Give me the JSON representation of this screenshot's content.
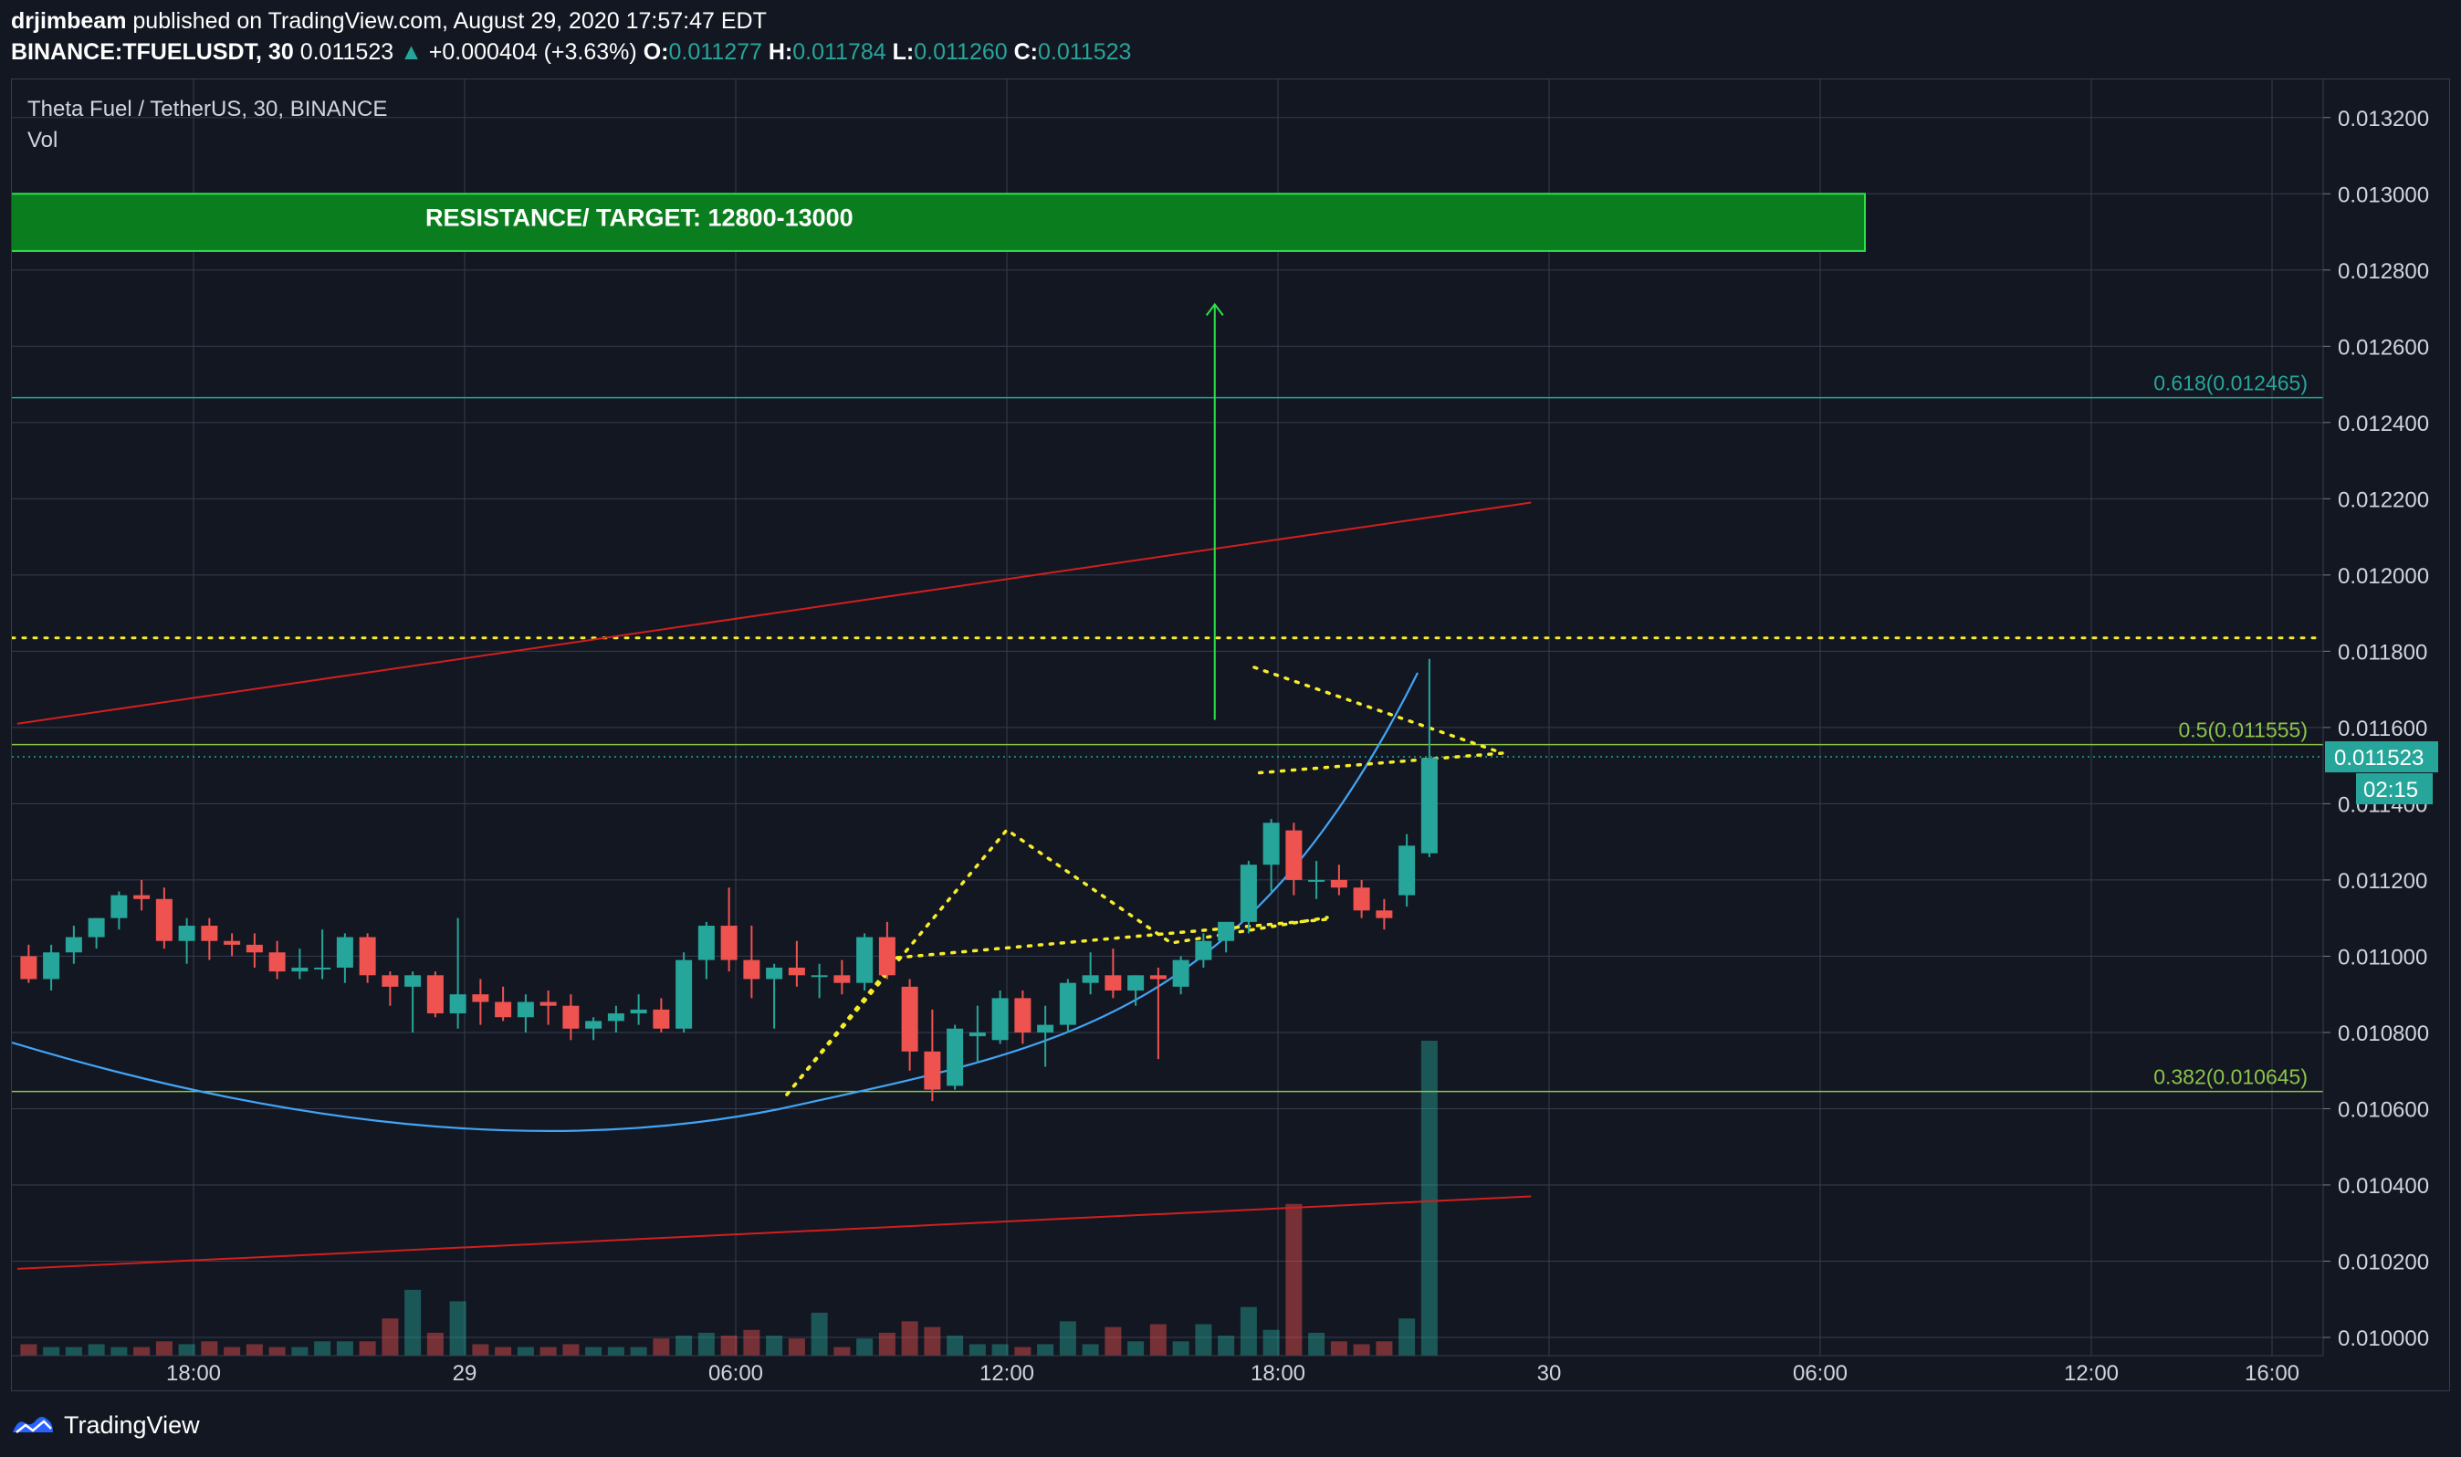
{
  "header": {
    "author": "drjimbeam",
    "published": "published on TradingView.com, August 29, 2020 17:57:47 EDT",
    "symbol": "BINANCE:TFUELUSDT, 30",
    "last": "0.011523",
    "change": "+0.000404 (+3.63%)",
    "o_label": "O:",
    "o": "0.011277",
    "h_label": "H:",
    "h": "0.011784",
    "l_label": "L:",
    "l": "0.011260",
    "c_label": "C:",
    "c": "0.011523"
  },
  "legend": {
    "title": "Theta Fuel / TetherUS, 30, BINANCE",
    "vol": "Vol"
  },
  "footer": {
    "brand": "TradingView"
  },
  "colors": {
    "up": "#26a69a",
    "down": "#ef5350",
    "bg": "#131722",
    "grid": "#363c4e",
    "accent": "#26a69a"
  },
  "chart_data": {
    "type": "candlestick",
    "ylim": [
      0.01,
      0.0133
    ],
    "y_ticks": [
      "0.013200",
      "0.013000",
      "0.012800",
      "0.012600",
      "0.012400",
      "0.012200",
      "0.012000",
      "0.011800",
      "0.011600",
      "0.011400",
      "0.011200",
      "0.011000",
      "0.010800",
      "0.010600",
      "0.010400",
      "0.010200",
      "0.010000"
    ],
    "x_ticks": [
      "18:00",
      "29",
      "06:00",
      "12:00",
      "18:00",
      "30",
      "06:00",
      "12:00",
      "16:00"
    ],
    "price_label": "0.011523",
    "countdown": "02:15",
    "candles": [
      {
        "o": 0.011,
        "h": 0.01103,
        "l": 0.01093,
        "c": 0.01094,
        "v": 4
      },
      {
        "o": 0.01094,
        "h": 0.01103,
        "l": 0.01091,
        "c": 0.01101,
        "v": 3
      },
      {
        "o": 0.01101,
        "h": 0.01108,
        "l": 0.01098,
        "c": 0.01105,
        "v": 3
      },
      {
        "o": 0.01105,
        "h": 0.0111,
        "l": 0.01102,
        "c": 0.0111,
        "v": 4
      },
      {
        "o": 0.0111,
        "h": 0.01117,
        "l": 0.01107,
        "c": 0.01116,
        "v": 3
      },
      {
        "o": 0.01116,
        "h": 0.0112,
        "l": 0.01112,
        "c": 0.01115,
        "v": 3
      },
      {
        "o": 0.01115,
        "h": 0.01118,
        "l": 0.01102,
        "c": 0.01104,
        "v": 5
      },
      {
        "o": 0.01104,
        "h": 0.0111,
        "l": 0.01098,
        "c": 0.01108,
        "v": 4
      },
      {
        "o": 0.01108,
        "h": 0.0111,
        "l": 0.01099,
        "c": 0.01104,
        "v": 5
      },
      {
        "o": 0.01104,
        "h": 0.01106,
        "l": 0.011,
        "c": 0.01103,
        "v": 3
      },
      {
        "o": 0.01103,
        "h": 0.01106,
        "l": 0.01097,
        "c": 0.01101,
        "v": 4
      },
      {
        "o": 0.01101,
        "h": 0.01104,
        "l": 0.01094,
        "c": 0.01096,
        "v": 3
      },
      {
        "o": 0.01096,
        "h": 0.01102,
        "l": 0.01094,
        "c": 0.01097,
        "v": 3
      },
      {
        "o": 0.01097,
        "h": 0.01107,
        "l": 0.01094,
        "c": 0.01097,
        "v": 5
      },
      {
        "o": 0.01097,
        "h": 0.01106,
        "l": 0.01093,
        "c": 0.01105,
        "v": 5
      },
      {
        "o": 0.01105,
        "h": 0.01106,
        "l": 0.01093,
        "c": 0.01095,
        "v": 5
      },
      {
        "o": 0.01095,
        "h": 0.01096,
        "l": 0.01087,
        "c": 0.01092,
        "v": 13
      },
      {
        "o": 0.01092,
        "h": 0.01096,
        "l": 0.0108,
        "c": 0.01095,
        "v": 23
      },
      {
        "o": 0.01095,
        "h": 0.01096,
        "l": 0.01084,
        "c": 0.01085,
        "v": 8
      },
      {
        "o": 0.01085,
        "h": 0.0111,
        "l": 0.01081,
        "c": 0.0109,
        "v": 19
      },
      {
        "o": 0.0109,
        "h": 0.01094,
        "l": 0.01082,
        "c": 0.01088,
        "v": 4
      },
      {
        "o": 0.01088,
        "h": 0.01092,
        "l": 0.01083,
        "c": 0.01084,
        "v": 3
      },
      {
        "o": 0.01084,
        "h": 0.0109,
        "l": 0.0108,
        "c": 0.01088,
        "v": 3
      },
      {
        "o": 0.01088,
        "h": 0.01091,
        "l": 0.01082,
        "c": 0.01087,
        "v": 3
      },
      {
        "o": 0.01087,
        "h": 0.0109,
        "l": 0.01078,
        "c": 0.01081,
        "v": 4
      },
      {
        "o": 0.01081,
        "h": 0.01084,
        "l": 0.01078,
        "c": 0.01083,
        "v": 3
      },
      {
        "o": 0.01083,
        "h": 0.01087,
        "l": 0.0108,
        "c": 0.01085,
        "v": 3
      },
      {
        "o": 0.01085,
        "h": 0.0109,
        "l": 0.01082,
        "c": 0.01086,
        "v": 3
      },
      {
        "o": 0.01086,
        "h": 0.01089,
        "l": 0.0108,
        "c": 0.01081,
        "v": 6
      },
      {
        "o": 0.01081,
        "h": 0.01101,
        "l": 0.0108,
        "c": 0.01099,
        "v": 7
      },
      {
        "o": 0.01099,
        "h": 0.01109,
        "l": 0.01094,
        "c": 0.01108,
        "v": 8
      },
      {
        "o": 0.01108,
        "h": 0.01118,
        "l": 0.01096,
        "c": 0.01099,
        "v": 7
      },
      {
        "o": 0.01099,
        "h": 0.01108,
        "l": 0.01089,
        "c": 0.01094,
        "v": 9
      },
      {
        "o": 0.01094,
        "h": 0.01098,
        "l": 0.01081,
        "c": 0.01097,
        "v": 7
      },
      {
        "o": 0.01097,
        "h": 0.01104,
        "l": 0.01092,
        "c": 0.01095,
        "v": 6
      },
      {
        "o": 0.01095,
        "h": 0.01098,
        "l": 0.01089,
        "c": 0.01095,
        "v": 15
      },
      {
        "o": 0.01095,
        "h": 0.01099,
        "l": 0.0109,
        "c": 0.01093,
        "v": 3
      },
      {
        "o": 0.01093,
        "h": 0.01106,
        "l": 0.01091,
        "c": 0.01105,
        "v": 6
      },
      {
        "o": 0.01105,
        "h": 0.01109,
        "l": 0.01094,
        "c": 0.01095,
        "v": 8
      },
      {
        "o": 0.01092,
        "h": 0.01094,
        "l": 0.0107,
        "c": 0.01075,
        "v": 12
      },
      {
        "o": 0.01075,
        "h": 0.01086,
        "l": 0.01062,
        "c": 0.01065,
        "v": 10
      },
      {
        "o": 0.01066,
        "h": 0.01082,
        "l": 0.01065,
        "c": 0.01081,
        "v": 7
      },
      {
        "o": 0.01079,
        "h": 0.01087,
        "l": 0.01072,
        "c": 0.0108,
        "v": 4
      },
      {
        "o": 0.01078,
        "h": 0.01091,
        "l": 0.01077,
        "c": 0.01089,
        "v": 4
      },
      {
        "o": 0.01089,
        "h": 0.01091,
        "l": 0.01077,
        "c": 0.0108,
        "v": 3
      },
      {
        "o": 0.0108,
        "h": 0.01087,
        "l": 0.01071,
        "c": 0.01082,
        "v": 4
      },
      {
        "o": 0.01082,
        "h": 0.01094,
        "l": 0.0108,
        "c": 0.01093,
        "v": 12
      },
      {
        "o": 0.01093,
        "h": 0.01101,
        "l": 0.0109,
        "c": 0.01095,
        "v": 4
      },
      {
        "o": 0.01095,
        "h": 0.01102,
        "l": 0.01089,
        "c": 0.01091,
        "v": 10
      },
      {
        "o": 0.01091,
        "h": 0.01095,
        "l": 0.01087,
        "c": 0.01095,
        "v": 5
      },
      {
        "o": 0.01095,
        "h": 0.01097,
        "l": 0.01073,
        "c": 0.01094,
        "v": 11
      },
      {
        "o": 0.01092,
        "h": 0.011,
        "l": 0.0109,
        "c": 0.01099,
        "v": 5
      },
      {
        "o": 0.01099,
        "h": 0.01106,
        "l": 0.01097,
        "c": 0.01104,
        "v": 11
      },
      {
        "o": 0.01104,
        "h": 0.01109,
        "l": 0.01101,
        "c": 0.01109,
        "v": 7
      },
      {
        "o": 0.01109,
        "h": 0.01125,
        "l": 0.01106,
        "c": 0.01124,
        "v": 17
      },
      {
        "o": 0.01124,
        "h": 0.01136,
        "l": 0.01117,
        "c": 0.01135,
        "v": 9
      },
      {
        "o": 0.01133,
        "h": 0.01135,
        "l": 0.01116,
        "c": 0.0112,
        "v": 53
      },
      {
        "o": 0.0112,
        "h": 0.01125,
        "l": 0.01115,
        "c": 0.0112,
        "v": 8
      },
      {
        "o": 0.0112,
        "h": 0.01124,
        "l": 0.01116,
        "c": 0.01118,
        "v": 5
      },
      {
        "o": 0.01118,
        "h": 0.0112,
        "l": 0.0111,
        "c": 0.01112,
        "v": 4
      },
      {
        "o": 0.01112,
        "h": 0.01115,
        "l": 0.01107,
        "c": 0.0111,
        "v": 5
      },
      {
        "o": 0.01116,
        "h": 0.01132,
        "l": 0.01113,
        "c": 0.01129,
        "v": 13
      },
      {
        "o": 0.01127,
        "h": 0.01178,
        "l": 0.01126,
        "c": 0.01152,
        "v": 110
      }
    ],
    "annotations": {
      "resistance_label": "RESISTANCE/ TARGET:  12800-13000",
      "resistance_zone": [
        0.01285,
        0.013
      ],
      "dotted_level": 0.011835,
      "fib": [
        {
          "label": "0.618(0.012465)",
          "value": 0.012465
        },
        {
          "label": "0.5(0.011555)",
          "value": 0.011555
        },
        {
          "label": "0.382(0.010645)",
          "value": 0.010645
        }
      ],
      "upper_trend": [
        [
          -0.5,
          0.01161
        ],
        [
          66.5,
          0.01219
        ]
      ],
      "lower_trend": [
        [
          -0.5,
          0.01018
        ],
        [
          66.5,
          0.01037
        ]
      ],
      "target_arrow": [
        [
          52.5,
          0.01162
        ],
        [
          52.5,
          0.01271
        ]
      ]
    }
  }
}
